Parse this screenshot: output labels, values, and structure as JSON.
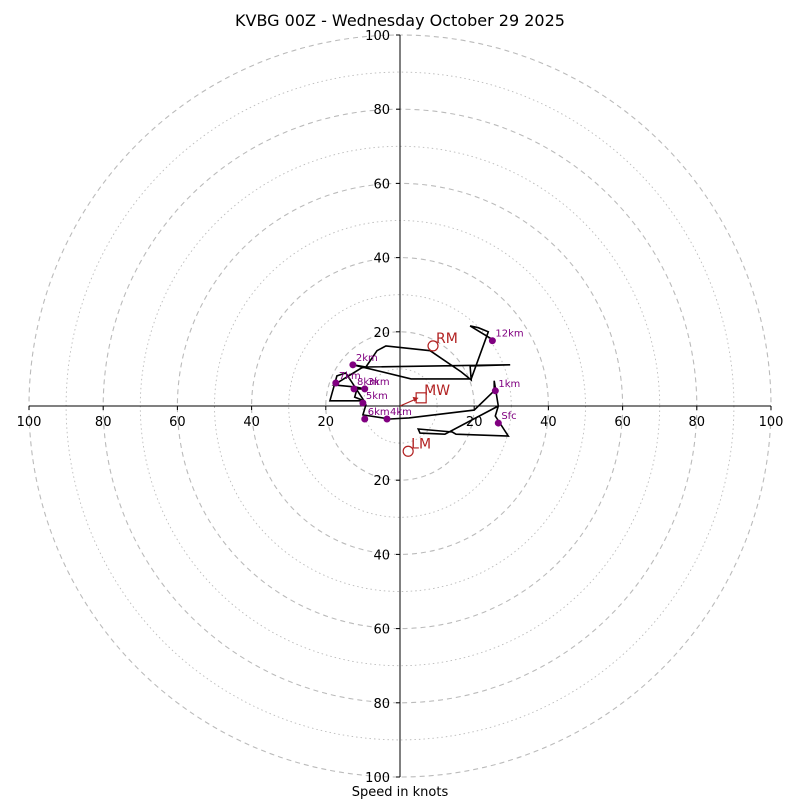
{
  "chart_data": {
    "type": "hodograph",
    "title": "KVBG 00Z - Wednesday October 29 2025",
    "xlabel": "Speed in knots",
    "range": [
      -100,
      100
    ],
    "ring_labels": [
      "20",
      "40",
      "60",
      "80",
      "100"
    ],
    "x_tick_labels": [
      "100",
      "80",
      "60",
      "40",
      "20",
      "20",
      "40",
      "60",
      "80",
      "100"
    ],
    "y_tick_labels_top": [
      "20",
      "40",
      "60",
      "80",
      "100"
    ],
    "y_tick_labels_bottom": [
      "20",
      "40",
      "60",
      "80",
      "100"
    ],
    "trace_color": "#000000",
    "marker_color": "#800080",
    "motion_color": "#b22222",
    "grid_color": "#bbbbbb",
    "trace": [
      [
        26.5,
        0.0
      ],
      [
        25.7,
        -2.7
      ],
      [
        29.2,
        -8.1
      ],
      [
        15.1,
        -7.6
      ],
      [
        14.1,
        -7.0
      ],
      [
        4.9,
        -6.2
      ],
      [
        5.4,
        -7.3
      ],
      [
        12.1,
        -7.6
      ],
      [
        26.5,
        0.0
      ],
      [
        25.4,
        6.8
      ],
      [
        25.4,
        4.1
      ],
      [
        20.0,
        -1.1
      ],
      [
        2.4,
        -3.2
      ],
      [
        -2.7,
        -3.5
      ],
      [
        -10.0,
        -2.4
      ],
      [
        -9.2,
        0.3
      ],
      [
        -10.0,
        1.4
      ],
      [
        -18.9,
        1.4
      ],
      [
        -17.0,
        8.1
      ],
      [
        -14.6,
        8.9
      ],
      [
        -9.7,
        1.4
      ],
      [
        -12.2,
        2.4
      ],
      [
        -11.6,
        4.6
      ],
      [
        -9.5,
        4.6
      ],
      [
        -11.9,
        5.1
      ],
      [
        -17.8,
        5.7
      ],
      [
        -10.3,
        10.3
      ],
      [
        -9.2,
        10.5
      ],
      [
        -6.2,
        14.9
      ],
      [
        -3.8,
        16.2
      ],
      [
        8.1,
        14.9
      ],
      [
        16.5,
        9.2
      ],
      [
        19.2,
        7.0
      ],
      [
        18.9,
        10.8
      ],
      [
        29.7,
        11.1
      ],
      [
        -9.2,
        10.5
      ],
      [
        -12.7,
        11.1
      ],
      [
        3.0,
        7.3
      ],
      [
        19.2,
        7.3
      ],
      [
        23.8,
        20.0
      ],
      [
        21.1,
        21.1
      ],
      [
        18.9,
        21.6
      ],
      [
        24.6,
        18.1
      ]
    ],
    "height_points": [
      {
        "label": "Sfc",
        "u": 26.5,
        "v": -4.6
      },
      {
        "label": "1km",
        "u": 25.7,
        "v": 4.1
      },
      {
        "label": "2km",
        "u": -12.7,
        "v": 11.1
      },
      {
        "label": "3km",
        "u": -9.5,
        "v": 4.6
      },
      {
        "label": "4km",
        "u": -3.5,
        "v": -3.5
      },
      {
        "label": "5km",
        "u": -10.0,
        "v": 0.8
      },
      {
        "label": "6km",
        "u": -9.5,
        "v": -3.5
      },
      {
        "label": "7km",
        "u": -17.3,
        "v": 6.2
      },
      {
        "label": "8km",
        "u": -12.4,
        "v": 4.6
      },
      {
        "label": "12km",
        "u": 24.9,
        "v": 17.6
      }
    ],
    "storm_motion": [
      {
        "label": "RM",
        "u": 8.9,
        "v": 16.2,
        "marker": "circle"
      },
      {
        "label": "LM",
        "u": 2.2,
        "v": -12.2,
        "marker": "circle"
      },
      {
        "label": "MW",
        "u": 5.7,
        "v": 2.2,
        "marker": "square"
      }
    ]
  }
}
